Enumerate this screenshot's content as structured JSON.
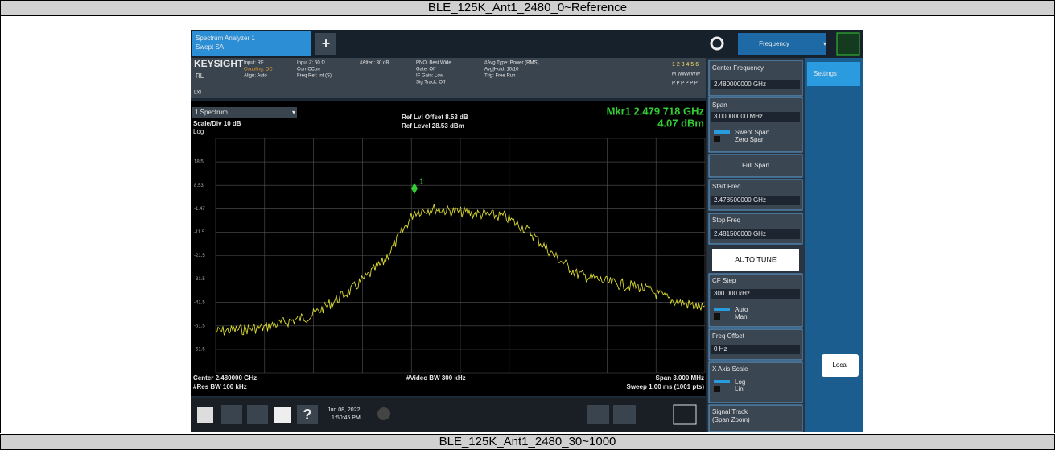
{
  "header": {
    "top_caption": "BLE_125K_Ant1_2480_0~Reference",
    "bottom_caption": "BLE_125K_Ant1_2480_30~1000"
  },
  "toolbar": {
    "tab_line1": "Spectrum Analyzer 1",
    "tab_line2": "Swept SA",
    "menu": "Frequency"
  },
  "status": {
    "brand": "KEYSIGHT",
    "rl": "RL",
    "lxi": "LXI",
    "col1": [
      "Input: RF",
      "Coupling: DC",
      "Align: Auto"
    ],
    "col2": [
      "Input Z: 50 Ω",
      "Corr CCorr",
      "Freq Ref: Int (S)"
    ],
    "col3": [
      "#Atten: 30 dB"
    ],
    "col4": [
      "PNO: Best Wide",
      "Gate: Off",
      "IF Gain: Low",
      "Sig Track: Off"
    ],
    "col5": [
      "#Avg Type: Power (RMS)",
      "Avg|Hold: 10/10",
      "Trig: Free Run"
    ],
    "traces": [
      "1 2 3 4 5 6",
      "M WWWWW",
      "P P P P P P"
    ]
  },
  "graph": {
    "window": "1 Spectrum",
    "scale": "Scale/Div 10 dB",
    "log": "Log",
    "ref_offset": "Ref Lvl Offset 8.53 dB",
    "ref_level": "Ref Level 28.53 dBm",
    "marker_freq": "Mkr1  2.479 718 GHz",
    "marker_level": "4.07 dBm",
    "marker_label": "1",
    "y_labels": [
      "18.5",
      "8.53",
      "-1.47",
      "-11.5",
      "-21.5",
      "-31.5",
      "-41.5",
      "-51.5",
      "-61.5"
    ],
    "center": "Center 2.480000 GHz",
    "rbw": "#Res BW 100 kHz",
    "vbw": "#Video BW 300 kHz",
    "span": "Span 3.000 MHz",
    "sweep": "Sweep 1.00 ms (1001 pts)"
  },
  "softkeys": {
    "center_label": "Center Frequency",
    "center_value": "2.480000000 GHz",
    "span_label": "Span",
    "span_value": "3.00000000 MHz",
    "swept_span": "Swept Span",
    "zero_span": "Zero Span",
    "full_span": "Full Span",
    "start_label": "Start Freq",
    "start_value": "2.478500000 GHz",
    "stop_label": "Stop Freq",
    "stop_value": "2.481500000 GHz",
    "auto_tune": "AUTO TUNE",
    "cf_label": "CF Step",
    "cf_value": "300.000 kHz",
    "auto": "Auto",
    "man": "Man",
    "offset_label": "Freq Offset",
    "offset_value": "0 Hz",
    "xscale_label": "X Axis Scale",
    "log": "Log",
    "lin": "Lin",
    "track_label": "Signal Track",
    "track_sub": "(Span Zoom)"
  },
  "side": {
    "settings": "Settings",
    "local": "Local"
  },
  "taskbar": {
    "date": "Jun 08, 2022",
    "time": "1:50:45 PM"
  }
}
